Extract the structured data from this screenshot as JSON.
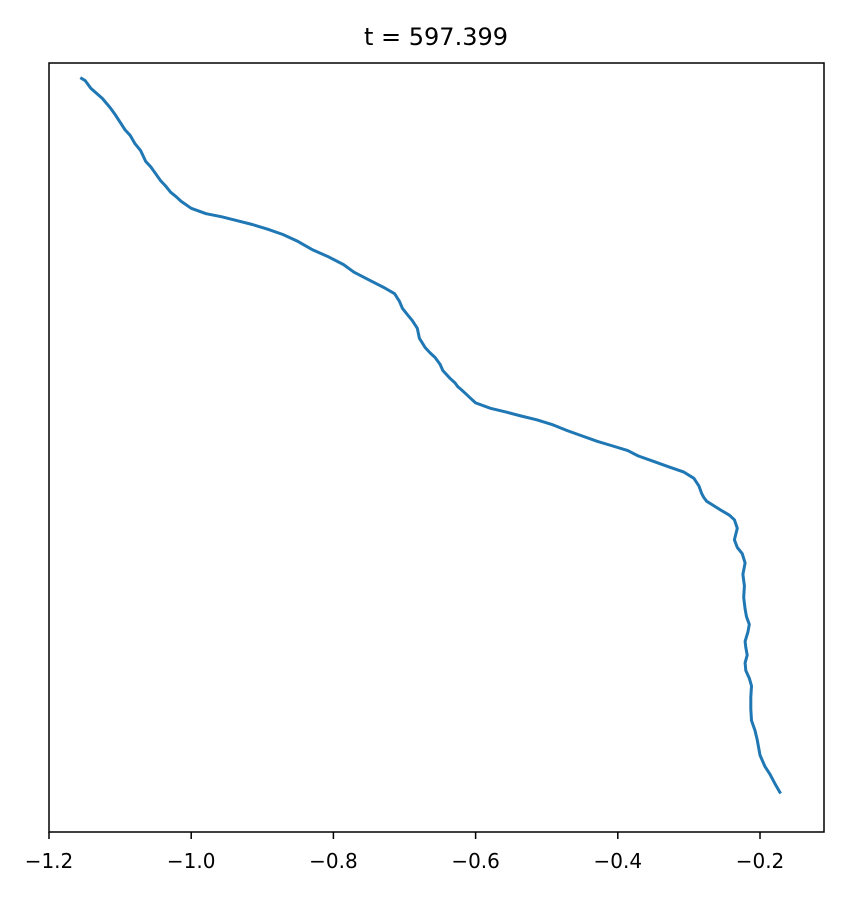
{
  "chart_data": {
    "type": "line",
    "title": "t = 597.399",
    "xlabel": "",
    "ylabel": "",
    "xlim": [
      -1.2,
      -0.11
    ],
    "ylim": [
      0,
      1
    ],
    "x_ticks": [
      -1.2,
      -1.0,
      -0.8,
      -0.6,
      -0.4,
      -0.2
    ],
    "x_tick_labels": [
      "−1.2",
      "−1.0",
      "−0.8",
      "−0.6",
      "−0.4",
      "−0.2"
    ],
    "y_ticks_visible": false,
    "grid": false,
    "series": [
      {
        "color": "#1f77b4",
        "x": [
          -1.156,
          -1.149,
          -1.141,
          -1.125,
          -1.114,
          -1.107,
          -1.093,
          -1.086,
          -1.079,
          -1.071,
          -1.064,
          -1.057,
          -1.05,
          -1.043,
          -1.036,
          -1.029,
          -1.021,
          -1.014,
          -1.0,
          -0.979,
          -0.957,
          -0.936,
          -0.914,
          -0.893,
          -0.871,
          -0.85,
          -0.829,
          -0.807,
          -0.786,
          -0.771,
          -0.75,
          -0.729,
          -0.714,
          -0.707,
          -0.703,
          -0.696,
          -0.689,
          -0.682,
          -0.679,
          -0.675,
          -0.671,
          -0.664,
          -0.657,
          -0.65,
          -0.646,
          -0.643,
          -0.636,
          -0.629,
          -0.625,
          -0.621,
          -0.614,
          -0.607,
          -0.6,
          -0.579,
          -0.557,
          -0.536,
          -0.514,
          -0.493,
          -0.471,
          -0.45,
          -0.429,
          -0.407,
          -0.386,
          -0.371,
          -0.35,
          -0.329,
          -0.307,
          -0.293,
          -0.286,
          -0.282,
          -0.279,
          -0.275,
          -0.268,
          -0.261,
          -0.254,
          -0.243,
          -0.236,
          -0.232,
          -0.236,
          -0.232,
          -0.225,
          -0.221,
          -0.224,
          -0.222,
          -0.223,
          -0.221,
          -0.219,
          -0.215,
          -0.217,
          -0.221,
          -0.22,
          -0.218,
          -0.221,
          -0.22,
          -0.215,
          -0.212,
          -0.213,
          -0.213,
          -0.212,
          -0.207,
          -0.204,
          -0.2,
          -0.193,
          -0.186,
          -0.179,
          -0.171
        ],
        "y": [
          0.981,
          0.977,
          0.967,
          0.954,
          0.942,
          0.933,
          0.913,
          0.906,
          0.895,
          0.886,
          0.872,
          0.865,
          0.856,
          0.847,
          0.84,
          0.832,
          0.826,
          0.82,
          0.811,
          0.804,
          0.8,
          0.795,
          0.79,
          0.784,
          0.777,
          0.768,
          0.757,
          0.748,
          0.738,
          0.728,
          0.718,
          0.708,
          0.7,
          0.69,
          0.681,
          0.673,
          0.665,
          0.655,
          0.642,
          0.636,
          0.63,
          0.623,
          0.617,
          0.608,
          0.6,
          0.597,
          0.59,
          0.584,
          0.579,
          0.576,
          0.57,
          0.564,
          0.558,
          0.551,
          0.546,
          0.541,
          0.536,
          0.53,
          0.522,
          0.515,
          0.508,
          0.502,
          0.496,
          0.489,
          0.482,
          0.475,
          0.468,
          0.46,
          0.45,
          0.44,
          0.435,
          0.43,
          0.426,
          0.422,
          0.418,
          0.412,
          0.406,
          0.395,
          0.38,
          0.37,
          0.362,
          0.35,
          0.335,
          0.32,
          0.305,
          0.29,
          0.28,
          0.27,
          0.26,
          0.248,
          0.24,
          0.23,
          0.22,
          0.21,
          0.2,
          0.19,
          0.175,
          0.16,
          0.145,
          0.132,
          0.12,
          0.1,
          0.085,
          0.075,
          0.063,
          0.05
        ]
      }
    ]
  }
}
